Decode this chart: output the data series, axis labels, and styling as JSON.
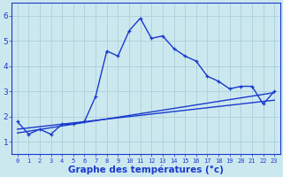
{
  "xlabel": "Graphe des températures (°c)",
  "bg_color": "#cce8ef",
  "line_color": "#1a3acc",
  "x_ticks": [
    0,
    1,
    2,
    3,
    4,
    5,
    6,
    7,
    8,
    9,
    10,
    11,
    12,
    13,
    14,
    15,
    16,
    17,
    18,
    19,
    20,
    21,
    22,
    23
  ],
  "y_ticks": [
    1,
    2,
    3,
    4,
    5,
    6
  ],
  "ylim": [
    0.5,
    6.5
  ],
  "xlim": [
    -0.5,
    23.5
  ],
  "curve1_x": [
    0,
    1,
    2,
    3,
    4,
    5,
    6,
    7,
    8,
    9,
    10,
    11,
    12,
    13,
    14,
    15,
    16,
    17,
    18,
    19,
    20,
    21,
    22,
    23
  ],
  "curve1_y": [
    1.8,
    1.3,
    1.5,
    1.3,
    1.7,
    1.7,
    1.8,
    2.8,
    4.6,
    4.4,
    5.4,
    5.9,
    5.1,
    5.2,
    4.7,
    4.4,
    4.2,
    3.6,
    3.4,
    3.1,
    3.2,
    3.2,
    2.5,
    3.0
  ],
  "trend1_x": [
    0,
    23
  ],
  "trend1_y": [
    1.35,
    2.95
  ],
  "trend2_x": [
    0,
    23
  ],
  "trend2_y": [
    1.5,
    2.65
  ],
  "grid_color": "#aad0da",
  "xlabel_fontsize": 7.5,
  "tick_fontsize_x": 5.0,
  "tick_fontsize_y": 6.5
}
